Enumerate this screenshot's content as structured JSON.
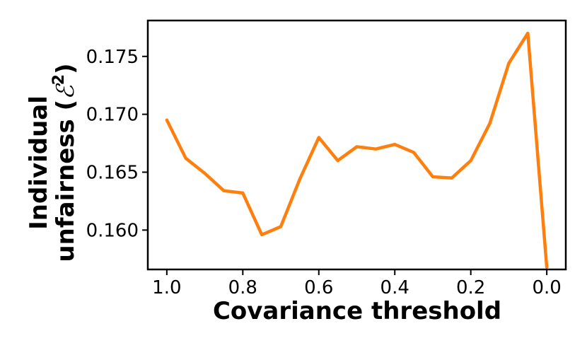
{
  "chart_data": {
    "type": "line",
    "title": "",
    "xlabel": "Covariance threshold",
    "ylabel_line1": "Individual",
    "ylabel_line2_prefix": "unfairness (",
    "ylabel_symbol": "ℰ",
    "ylabel_exponent": "2",
    "ylabel_line2_suffix": ")",
    "xlim": [
      1.05,
      -0.05
    ],
    "ylim": [
      0.1566,
      0.1781
    ],
    "x_ticks": [
      1.0,
      0.8,
      0.6,
      0.4,
      0.2,
      0.0
    ],
    "x_tick_labels": [
      "1.0",
      "0.8",
      "0.6",
      "0.4",
      "0.2",
      "0.0"
    ],
    "y_ticks": [
      0.16,
      0.165,
      0.17,
      0.175
    ],
    "y_tick_labels": [
      "0.160",
      "0.165",
      "0.170",
      "0.175"
    ],
    "grid": false,
    "color": "#ff7f0e",
    "series": [
      {
        "x": [
          1.0,
          0.95,
          0.9,
          0.85,
          0.8,
          0.75,
          0.7,
          0.65,
          0.6,
          0.55,
          0.5,
          0.45,
          0.4,
          0.35,
          0.3,
          0.25,
          0.2,
          0.15,
          0.1,
          0.05,
          0.0
        ],
        "y": [
          0.1695,
          0.1662,
          0.1649,
          0.1634,
          0.1632,
          0.1596,
          0.1603,
          0.1644,
          0.168,
          0.166,
          0.1672,
          0.167,
          0.1674,
          0.1667,
          0.1646,
          0.1645,
          0.166,
          0.1692,
          0.1744,
          0.177,
          0.1568
        ]
      }
    ]
  }
}
